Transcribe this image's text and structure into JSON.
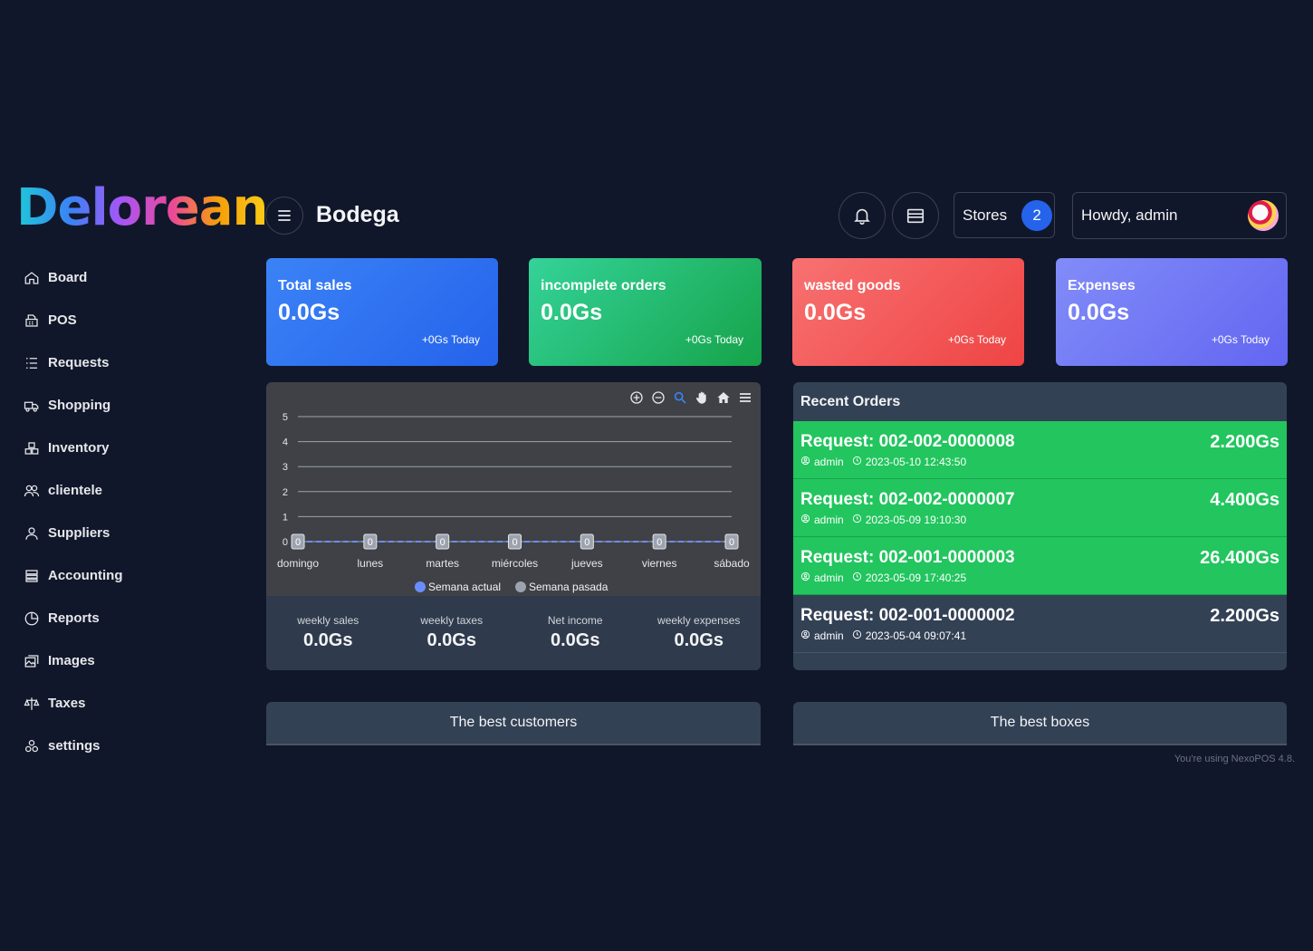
{
  "brand": {
    "logo_text": "Delorean"
  },
  "sidebar": {
    "items": [
      {
        "label": "Board",
        "icon": "home-icon"
      },
      {
        "label": "POS",
        "icon": "pos-icon"
      },
      {
        "label": "Requests",
        "icon": "list-icon"
      },
      {
        "label": "Shopping",
        "icon": "truck-icon"
      },
      {
        "label": "Inventory",
        "icon": "boxes-icon"
      },
      {
        "label": "clientele",
        "icon": "users-icon"
      },
      {
        "label": "Suppliers",
        "icon": "user-icon"
      },
      {
        "label": "Accounting",
        "icon": "cash-icon"
      },
      {
        "label": "Reports",
        "icon": "chart-pie-icon"
      },
      {
        "label": "Images",
        "icon": "images-icon"
      },
      {
        "label": "Taxes",
        "icon": "scale-icon"
      },
      {
        "label": "settings",
        "icon": "gears-icon"
      }
    ]
  },
  "header": {
    "title": "Bodega",
    "stores_label": "Stores",
    "stores_count": "2",
    "user_greeting": "Howdy, admin"
  },
  "cards": [
    {
      "title": "Total sales",
      "value": "0.0Gs",
      "sub": "+0Gs Today",
      "color": "#2563eb"
    },
    {
      "title": "incomplete orders",
      "value": "0.0Gs",
      "sub": "+0Gs Today",
      "color": "#22c55e"
    },
    {
      "title": "wasted goods",
      "value": "0.0Gs",
      "sub": "+0Gs Today",
      "color": "#ef4444"
    },
    {
      "title": "Expenses",
      "value": "0.0Gs",
      "sub": "+0Gs Today",
      "color": "#6366f1"
    }
  ],
  "chart_data": {
    "type": "line",
    "categories": [
      "domingo",
      "lunes",
      "martes",
      "miércoles",
      "jueves",
      "viernes",
      "sábado"
    ],
    "series": [
      {
        "name": "Semana actual",
        "values": [
          0,
          0,
          0,
          0,
          0,
          0,
          0
        ],
        "color": "#6b8cff"
      },
      {
        "name": "Semana pasada",
        "values": [
          0,
          0,
          0,
          0,
          0,
          0,
          0
        ],
        "color": "#9ca3af"
      }
    ],
    "yticks": [
      0,
      1,
      2,
      3,
      4,
      5
    ],
    "ylim": [
      0,
      5
    ],
    "data_labels": [
      "0",
      "0",
      "0",
      "0",
      "0",
      "0",
      "0"
    ],
    "legend": "bottom",
    "grid": true
  },
  "weekly": [
    {
      "label": "weekly sales",
      "value": "0.0Gs"
    },
    {
      "label": "weekly taxes",
      "value": "0.0Gs"
    },
    {
      "label": "Net income",
      "value": "0.0Gs"
    },
    {
      "label": "weekly expenses",
      "value": "0.0Gs"
    }
  ],
  "recent_orders": {
    "title": "Recent Orders",
    "items": [
      {
        "code": "Request: 002-002-0000008",
        "amount": "2.200Gs",
        "user": "admin",
        "date": "2023-05-10 12:43:50",
        "paid": true
      },
      {
        "code": "Request: 002-002-0000007",
        "amount": "4.400Gs",
        "user": "admin",
        "date": "2023-05-09 19:10:30",
        "paid": true
      },
      {
        "code": "Request: 002-001-0000003",
        "amount": "26.400Gs",
        "user": "admin",
        "date": "2023-05-09 17:40:25",
        "paid": true
      },
      {
        "code": "Request: 002-001-0000002",
        "amount": "2.200Gs",
        "user": "admin",
        "date": "2023-05-04 09:07:41",
        "paid": false
      }
    ]
  },
  "bottom": {
    "customers_title": "The best customers",
    "boxes_title": "The best boxes"
  },
  "footer": {
    "text": "You're using NexoPOS 4.8."
  }
}
